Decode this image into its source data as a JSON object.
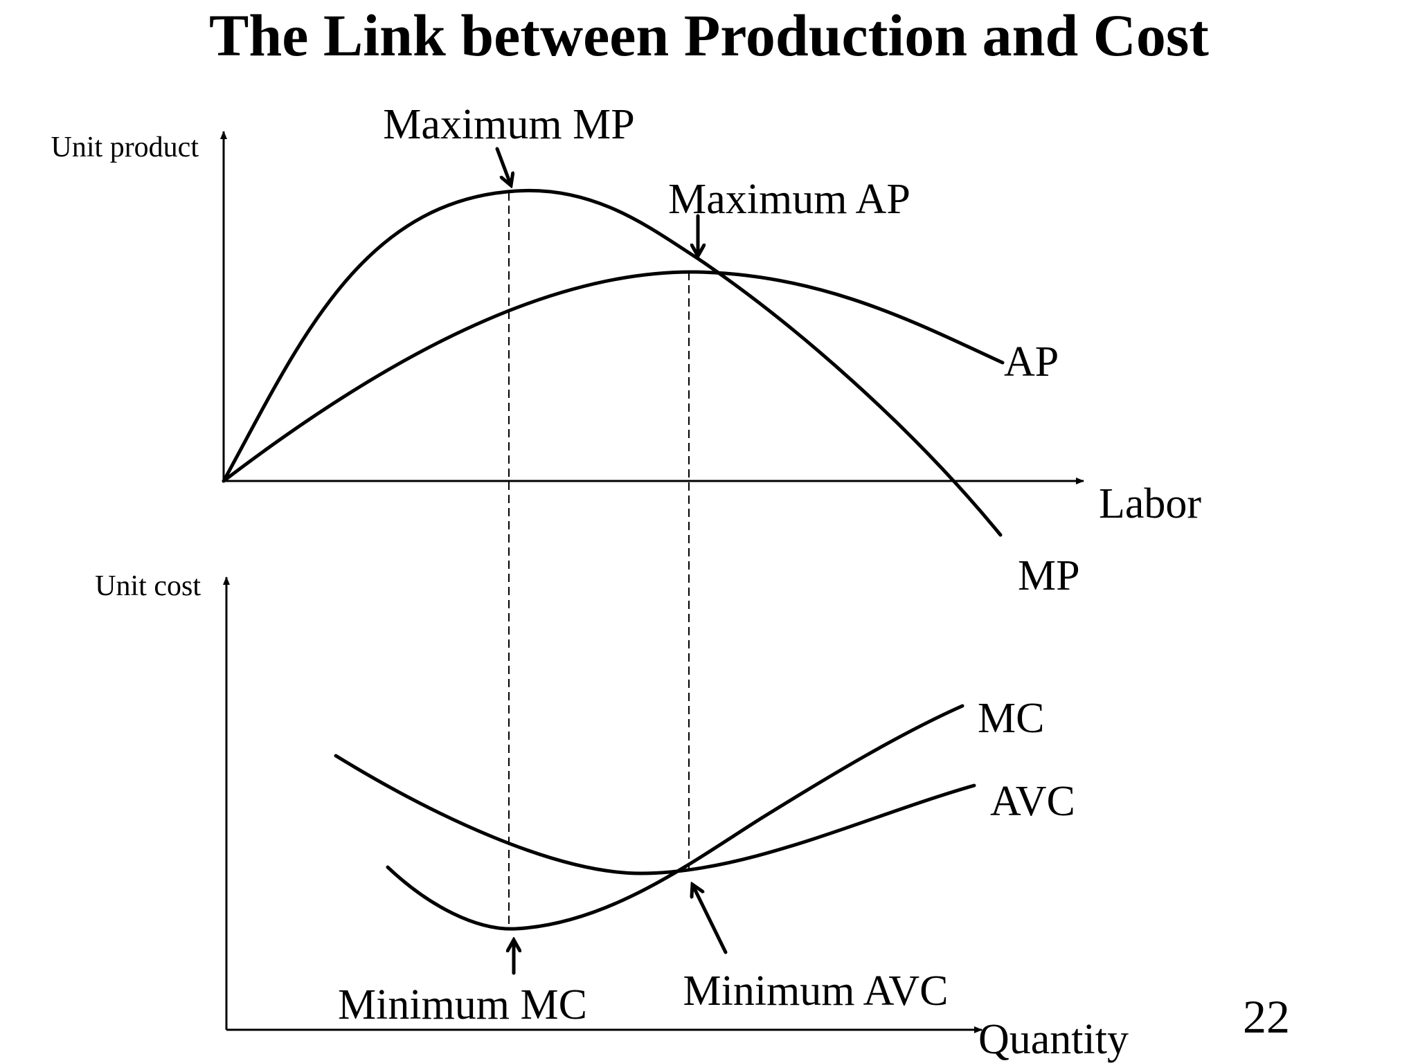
{
  "title": "The Link between Production and Cost",
  "page_number": "22",
  "top_panel": {
    "y_axis_label": "Unit product",
    "x_axis_label": "Labor",
    "curves": {
      "mp": "MP",
      "ap": "AP"
    },
    "annotations": {
      "max_mp": "Maximum MP",
      "max_ap": "Maximum AP"
    }
  },
  "bottom_panel": {
    "y_axis_label": "Unit cost",
    "x_axis_label": "Quantity",
    "curves": {
      "mc": "MC",
      "avc": "AVC"
    },
    "annotations": {
      "min_mc": "Minimum MC",
      "min_avc": "Minimum AVC"
    }
  },
  "colors": {
    "ink": "#000000",
    "background": "#ffffff"
  }
}
